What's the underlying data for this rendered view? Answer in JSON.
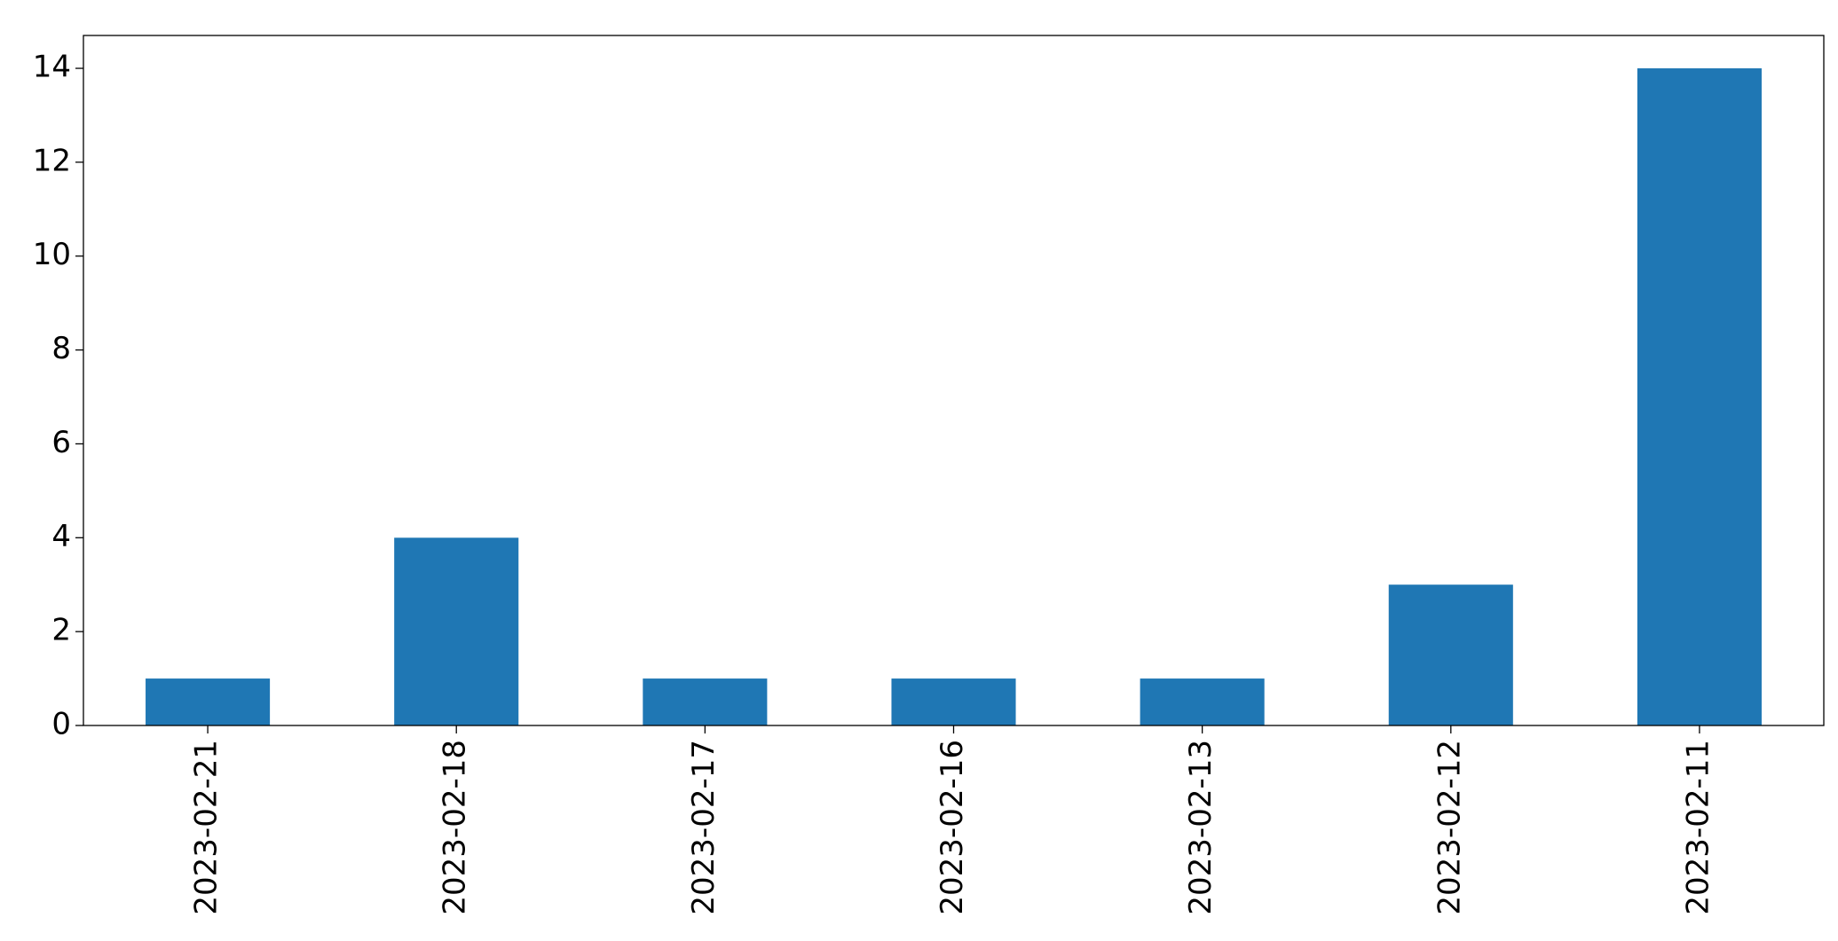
{
  "chart_data": {
    "type": "bar",
    "categories": [
      "2023-02-21",
      "2023-02-18",
      "2023-02-17",
      "2023-02-16",
      "2023-02-13",
      "2023-02-12",
      "2023-02-11"
    ],
    "values": [
      1,
      4,
      1,
      1,
      1,
      3,
      14
    ],
    "color": "#1f77b4",
    "ylim": [
      0,
      14.7
    ],
    "yticks": [
      0,
      2,
      4,
      6,
      8,
      10,
      12,
      14
    ],
    "grid": false
  }
}
